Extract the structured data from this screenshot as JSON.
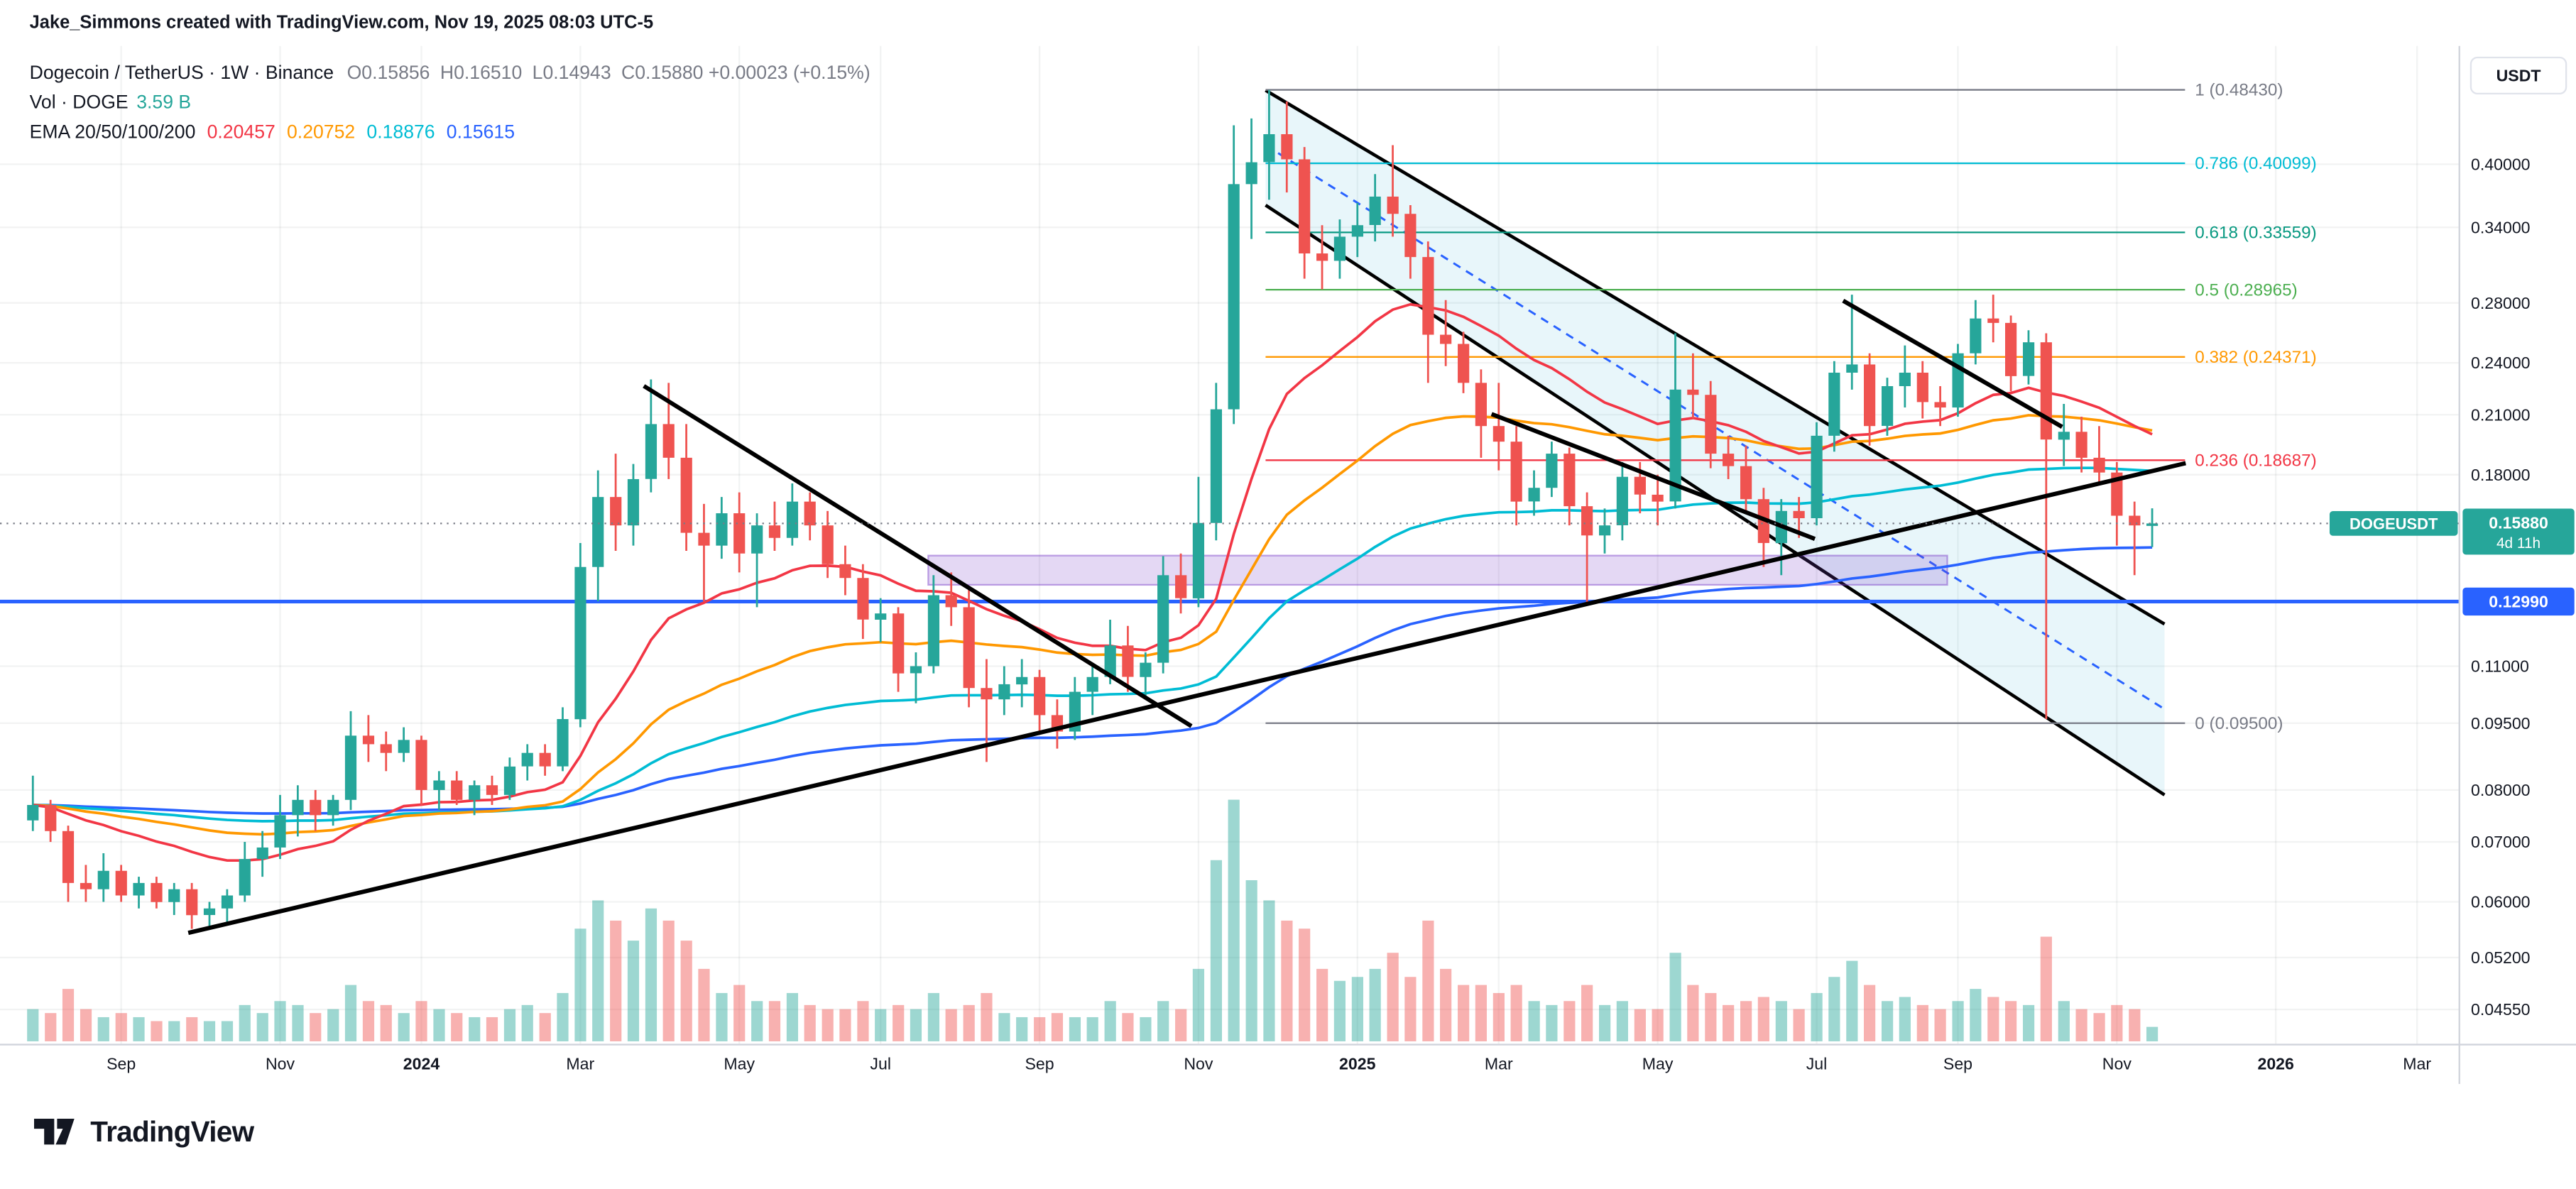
{
  "attribution": "Jake_Simmons created with TradingView.com, Nov 19, 2025 08:03 UTC-5",
  "colors": {
    "up": "#26a69a",
    "down": "#ef5350",
    "text": "#131722",
    "muted": "#787b86",
    "blue": "#2962ff",
    "vol_up": "rgba(38,166,154,0.45)",
    "vol_down": "rgba(239,83,80,0.45)"
  },
  "legend": {
    "title": "Dogecoin / TetherUS · 1W · Binance",
    "ohlc": [
      {
        "label": "O",
        "value": "0.15856"
      },
      {
        "label": "H",
        "value": "0.16510"
      },
      {
        "label": "L",
        "value": "0.14943"
      },
      {
        "label": "C",
        "value": "0.15880"
      }
    ],
    "change": "+0.00023 (+0.15%)",
    "vol_title": "Vol · DOGE",
    "vol_value": "3.59 B",
    "ema_title": "EMA 20/50/100/200",
    "ema_values": [
      {
        "value": "0.20457",
        "color": "#f23645"
      },
      {
        "value": "0.20752",
        "color": "#ff9800"
      },
      {
        "value": "0.18876",
        "color": "#00bcd4"
      },
      {
        "value": "0.15615",
        "color": "#2962ff"
      }
    ]
  },
  "price_axis": {
    "currency": "USDT",
    "ticks": [
      "0.40000",
      "0.34000",
      "0.28000",
      "0.24000",
      "0.21000",
      "0.18000",
      "0.11000",
      "0.09500",
      "0.08000",
      "0.07000",
      "0.06000",
      "0.05200",
      "0.04550"
    ],
    "last_price": {
      "symbol": "DOGEUSDT",
      "price": "0.15880",
      "countdown": "4d 11h",
      "color": "#26a69a",
      "value": 0.1588
    },
    "alert_line": {
      "price": "0.12990",
      "color": "#2962ff",
      "value": 0.1299
    }
  },
  "time_axis": [
    {
      "label": "Sep",
      "i": 5
    },
    {
      "label": "Nov",
      "i": 14
    },
    {
      "label": "2024",
      "i": 22,
      "year": true
    },
    {
      "label": "Mar",
      "i": 31
    },
    {
      "label": "May",
      "i": 40
    },
    {
      "label": "Jul",
      "i": 48
    },
    {
      "label": "Sep",
      "i": 57
    },
    {
      "label": "Nov",
      "i": 66
    },
    {
      "label": "2025",
      "i": 75,
      "year": true
    },
    {
      "label": "Mar",
      "i": 83
    },
    {
      "label": "May",
      "i": 92
    },
    {
      "label": "Jul",
      "i": 101
    },
    {
      "label": "Sep",
      "i": 109
    },
    {
      "label": "Nov",
      "i": 118
    },
    {
      "label": "2026",
      "i": 127,
      "year": true
    },
    {
      "label": "Mar",
      "i": 135
    }
  ],
  "footer": {
    "brand": "TradingView"
  },
  "chart_data": {
    "type": "candlestick",
    "title": "Dogecoin / TetherUS Weekly on Binance",
    "symbol": "DOGEUSDT",
    "interval": "1W",
    "price_scale": {
      "type": "log",
      "top": 0.5421,
      "bottom": 0.04157
    },
    "volume_max": 62,
    "volume_unit": "B DOGE",
    "candles": [
      [
        0.074,
        0.083,
        0.072,
        0.077,
        8
      ],
      [
        0.077,
        0.078,
        0.07,
        0.072,
        7
      ],
      [
        0.072,
        0.073,
        0.06,
        0.063,
        13
      ],
      [
        0.063,
        0.066,
        0.06,
        0.062,
        8
      ],
      [
        0.062,
        0.068,
        0.06,
        0.065,
        6
      ],
      [
        0.065,
        0.066,
        0.06,
        0.061,
        7
      ],
      [
        0.061,
        0.064,
        0.059,
        0.063,
        6
      ],
      [
        0.063,
        0.064,
        0.059,
        0.06,
        5
      ],
      [
        0.06,
        0.063,
        0.058,
        0.062,
        5
      ],
      [
        0.062,
        0.063,
        0.056,
        0.058,
        6
      ],
      [
        0.058,
        0.06,
        0.056,
        0.059,
        5
      ],
      [
        0.059,
        0.062,
        0.057,
        0.061,
        5
      ],
      [
        0.061,
        0.07,
        0.06,
        0.067,
        9
      ],
      [
        0.067,
        0.072,
        0.064,
        0.069,
        7
      ],
      [
        0.069,
        0.079,
        0.067,
        0.075,
        10
      ],
      [
        0.075,
        0.081,
        0.071,
        0.078,
        9
      ],
      [
        0.078,
        0.08,
        0.072,
        0.075,
        7
      ],
      [
        0.075,
        0.079,
        0.073,
        0.078,
        8
      ],
      [
        0.078,
        0.098,
        0.076,
        0.092,
        14
      ],
      [
        0.092,
        0.097,
        0.086,
        0.09,
        10
      ],
      [
        0.09,
        0.093,
        0.084,
        0.088,
        9
      ],
      [
        0.088,
        0.094,
        0.086,
        0.091,
        7
      ],
      [
        0.091,
        0.092,
        0.077,
        0.08,
        10
      ],
      [
        0.08,
        0.084,
        0.076,
        0.082,
        8
      ],
      [
        0.082,
        0.084,
        0.077,
        0.078,
        7
      ],
      [
        0.078,
        0.082,
        0.075,
        0.081,
        6
      ],
      [
        0.081,
        0.083,
        0.077,
        0.079,
        6
      ],
      [
        0.079,
        0.087,
        0.078,
        0.085,
        8
      ],
      [
        0.085,
        0.09,
        0.082,
        0.088,
        9
      ],
      [
        0.088,
        0.09,
        0.083,
        0.085,
        7
      ],
      [
        0.085,
        0.099,
        0.084,
        0.096,
        12
      ],
      [
        0.096,
        0.151,
        0.094,
        0.142,
        28
      ],
      [
        0.142,
        0.182,
        0.13,
        0.17,
        35
      ],
      [
        0.17,
        0.19,
        0.148,
        0.158,
        30
      ],
      [
        0.158,
        0.185,
        0.15,
        0.178,
        25
      ],
      [
        0.178,
        0.23,
        0.172,
        0.205,
        33
      ],
      [
        0.205,
        0.228,
        0.178,
        0.188,
        30
      ],
      [
        0.188,
        0.205,
        0.148,
        0.155,
        25
      ],
      [
        0.155,
        0.167,
        0.13,
        0.15,
        18
      ],
      [
        0.15,
        0.17,
        0.145,
        0.163,
        12
      ],
      [
        0.163,
        0.172,
        0.14,
        0.147,
        14
      ],
      [
        0.147,
        0.163,
        0.128,
        0.158,
        10
      ],
      [
        0.158,
        0.168,
        0.148,
        0.153,
        10
      ],
      [
        0.153,
        0.176,
        0.15,
        0.168,
        12
      ],
      [
        0.168,
        0.172,
        0.152,
        0.158,
        9
      ],
      [
        0.158,
        0.164,
        0.138,
        0.143,
        8
      ],
      [
        0.143,
        0.15,
        0.132,
        0.138,
        8
      ],
      [
        0.138,
        0.143,
        0.118,
        0.124,
        10
      ],
      [
        0.124,
        0.131,
        0.117,
        0.126,
        8
      ],
      [
        0.126,
        0.128,
        0.103,
        0.108,
        9
      ],
      [
        0.108,
        0.114,
        0.1,
        0.11,
        8
      ],
      [
        0.11,
        0.139,
        0.108,
        0.132,
        12
      ],
      [
        0.132,
        0.14,
        0.122,
        0.128,
        8
      ],
      [
        0.128,
        0.134,
        0.099,
        0.104,
        9
      ],
      [
        0.104,
        0.112,
        0.086,
        0.101,
        12
      ],
      [
        0.101,
        0.11,
        0.097,
        0.105,
        7
      ],
      [
        0.105,
        0.112,
        0.099,
        0.107,
        6
      ],
      [
        0.107,
        0.109,
        0.093,
        0.097,
        6
      ],
      [
        0.097,
        0.101,
        0.089,
        0.093,
        7
      ],
      [
        0.093,
        0.107,
        0.091,
        0.103,
        6
      ],
      [
        0.103,
        0.11,
        0.097,
        0.107,
        6
      ],
      [
        0.107,
        0.124,
        0.105,
        0.116,
        10
      ],
      [
        0.116,
        0.122,
        0.103,
        0.107,
        7
      ],
      [
        0.107,
        0.114,
        0.102,
        0.111,
        6
      ],
      [
        0.111,
        0.146,
        0.108,
        0.139,
        10
      ],
      [
        0.139,
        0.147,
        0.126,
        0.131,
        8
      ],
      [
        0.131,
        0.179,
        0.128,
        0.159,
        18
      ],
      [
        0.159,
        0.228,
        0.152,
        0.213,
        45
      ],
      [
        0.213,
        0.442,
        0.205,
        0.38,
        60
      ],
      [
        0.38,
        0.45,
        0.33,
        0.402,
        40
      ],
      [
        0.402,
        0.484,
        0.365,
        0.432,
        35
      ],
      [
        0.432,
        0.47,
        0.372,
        0.405,
        30
      ],
      [
        0.405,
        0.418,
        0.298,
        0.318,
        28
      ],
      [
        0.318,
        0.342,
        0.29,
        0.312,
        18
      ],
      [
        0.312,
        0.347,
        0.298,
        0.332,
        15
      ],
      [
        0.332,
        0.362,
        0.315,
        0.342,
        16
      ],
      [
        0.342,
        0.39,
        0.328,
        0.368,
        18
      ],
      [
        0.368,
        0.42,
        0.332,
        0.352,
        22
      ],
      [
        0.352,
        0.36,
        0.298,
        0.315,
        16
      ],
      [
        0.315,
        0.328,
        0.228,
        0.258,
        30
      ],
      [
        0.258,
        0.282,
        0.238,
        0.252,
        18
      ],
      [
        0.252,
        0.26,
        0.222,
        0.228,
        14
      ],
      [
        0.228,
        0.236,
        0.188,
        0.204,
        14
      ],
      [
        0.204,
        0.228,
        0.182,
        0.196,
        12
      ],
      [
        0.196,
        0.204,
        0.158,
        0.168,
        14
      ],
      [
        0.168,
        0.182,
        0.162,
        0.174,
        10
      ],
      [
        0.174,
        0.196,
        0.17,
        0.19,
        9
      ],
      [
        0.19,
        0.193,
        0.158,
        0.166,
        10
      ],
      [
        0.166,
        0.172,
        0.129,
        0.154,
        14
      ],
      [
        0.154,
        0.165,
        0.147,
        0.158,
        9
      ],
      [
        0.158,
        0.186,
        0.152,
        0.179,
        10
      ],
      [
        0.179,
        0.186,
        0.163,
        0.171,
        8
      ],
      [
        0.171,
        0.18,
        0.158,
        0.168,
        8
      ],
      [
        0.168,
        0.259,
        0.165,
        0.224,
        22
      ],
      [
        0.224,
        0.246,
        0.208,
        0.221,
        14
      ],
      [
        0.221,
        0.229,
        0.183,
        0.19,
        12
      ],
      [
        0.19,
        0.199,
        0.178,
        0.184,
        9
      ],
      [
        0.184,
        0.194,
        0.163,
        0.169,
        10
      ],
      [
        0.169,
        0.174,
        0.142,
        0.151,
        11
      ],
      [
        0.151,
        0.169,
        0.139,
        0.164,
        10
      ],
      [
        0.164,
        0.17,
        0.153,
        0.161,
        8
      ],
      [
        0.161,
        0.206,
        0.158,
        0.199,
        12
      ],
      [
        0.199,
        0.241,
        0.191,
        0.234,
        16
      ],
      [
        0.234,
        0.286,
        0.224,
        0.239,
        20
      ],
      [
        0.239,
        0.246,
        0.194,
        0.204,
        14
      ],
      [
        0.204,
        0.231,
        0.199,
        0.226,
        10
      ],
      [
        0.226,
        0.251,
        0.214,
        0.234,
        11
      ],
      [
        0.234,
        0.241,
        0.208,
        0.217,
        9
      ],
      [
        0.217,
        0.226,
        0.204,
        0.214,
        8
      ],
      [
        0.214,
        0.252,
        0.209,
        0.246,
        10
      ],
      [
        0.246,
        0.282,
        0.239,
        0.269,
        13
      ],
      [
        0.269,
        0.286,
        0.253,
        0.266,
        11
      ],
      [
        0.266,
        0.271,
        0.223,
        0.232,
        10
      ],
      [
        0.232,
        0.261,
        0.227,
        0.253,
        9
      ],
      [
        0.253,
        0.259,
        0.096,
        0.197,
        26
      ],
      [
        0.197,
        0.216,
        0.184,
        0.201,
        10
      ],
      [
        0.201,
        0.209,
        0.181,
        0.188,
        8
      ],
      [
        0.188,
        0.204,
        0.176,
        0.181,
        7
      ],
      [
        0.181,
        0.186,
        0.15,
        0.162,
        9
      ],
      [
        0.162,
        0.168,
        0.139,
        0.158,
        8
      ],
      [
        0.15856,
        0.1651,
        0.14943,
        0.1588,
        3.59
      ]
    ],
    "emas": [
      {
        "length": 20,
        "color": "#f23645"
      },
      {
        "length": 50,
        "color": "#ff9800"
      },
      {
        "length": 100,
        "color": "#00bcd4"
      },
      {
        "length": 200,
        "color": "#2962ff"
      }
    ],
    "fib_levels": [
      {
        "label": "1 (0.48430)",
        "price": 0.4843,
        "color": "#787b86"
      },
      {
        "label": "0.786 (0.40099)",
        "price": 0.40099,
        "color": "#00bcd4"
      },
      {
        "label": "0.618 (0.33559)",
        "price": 0.33559,
        "color": "#089981"
      },
      {
        "label": "0.5 (0.28965)",
        "price": 0.28965,
        "color": "#4caf50"
      },
      {
        "label": "0.382 (0.24371)",
        "price": 0.24371,
        "color": "#ff9800"
      },
      {
        "label": "0.236 (0.18687)",
        "price": 0.18687,
        "color": "#f23645"
      },
      {
        "label": "0 (0.09500)",
        "price": 0.095,
        "color": "#787b86"
      }
    ],
    "fib_range": {
      "start_i": 69.8,
      "end_i": 121.9
    },
    "trendlines": [
      {
        "name": "ascending-support-trendline",
        "x1": 8.8,
        "p1": 0.0554,
        "x2": 121.9,
        "p2": 0.1854,
        "width": 2.6
      },
      {
        "name": "descending-2024-trendline",
        "x1": 34.6,
        "p1": 0.2261,
        "x2": 65.6,
        "p2": 0.0943,
        "width": 2.6
      },
      {
        "name": "mid-2025-resistance-trendline",
        "x1": 82.6,
        "p1": 0.2104,
        "x2": 100.9,
        "p2": 0.1526,
        "width": 2.6
      },
      {
        "name": "late-2025-resistance-trendline",
        "x1": 102.5,
        "p1": 0.2816,
        "x2": 114.9,
        "p2": 0.2036,
        "width": 2.6
      }
    ],
    "channel": {
      "upper": {
        "x1": 69.8,
        "p1": 0.4837,
        "x2": 120.7,
        "p2": 0.1226
      },
      "lower": {
        "x1": 69.8,
        "p1": 0.36,
        "x2": 120.7,
        "p2": 0.079
      },
      "mid": {
        "x1": 69.8,
        "p1": 0.42,
        "x2": 120.7,
        "p2": 0.0985,
        "style": "dashed",
        "color": "#2962ff"
      },
      "fill": "rgba(0,160,200,0.09)"
    },
    "zone": {
      "x1": 50.7,
      "x2": 108.4,
      "p_top": 0.1462,
      "p_bottom": 0.1356,
      "fill": "rgba(120,60,200,0.20)",
      "stroke": "rgba(120,60,200,0.45)"
    },
    "support_line": {
      "price": 0.1299,
      "color": "#2962ff"
    },
    "last_price_line": {
      "price": 0.1588,
      "color": "#787b86"
    }
  }
}
